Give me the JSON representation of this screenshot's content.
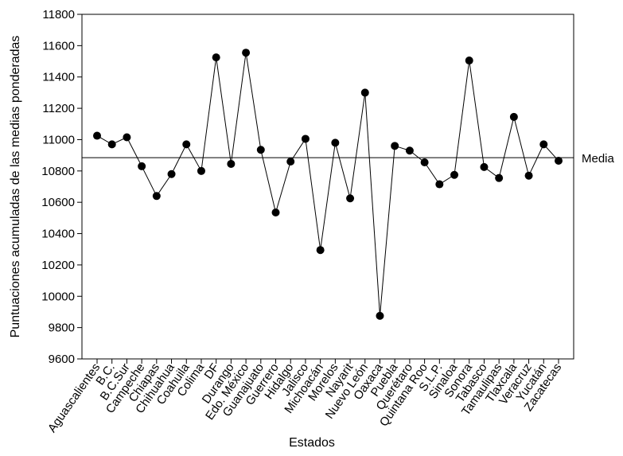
{
  "chart_data": {
    "type": "line",
    "title": "",
    "xlabel": "Estados",
    "ylabel": "Puntuaciones acumuladas de las medias ponderadas",
    "ylim": [
      9600,
      11800
    ],
    "yticks": [
      9600,
      9800,
      10000,
      10200,
      10400,
      10600,
      10800,
      11000,
      11200,
      11400,
      11600,
      11800
    ],
    "grid": false,
    "categories": [
      "Aguascalientes",
      "B.C.",
      "B.C.Sur",
      "Campeche",
      "Chiapas",
      "Chihuahua",
      "Coahuila",
      "Colima",
      "DF",
      "Durango",
      "Edo. México",
      "Guanajuato",
      "Guerrero",
      "Hidalgo",
      "Jalisco",
      "Michoacán",
      "Morelos",
      "Nayarit",
      "Nuevo León",
      "Oaxaca",
      "Puebla",
      "Querétaro",
      "Quintana Roo",
      "S.L.P.",
      "Sinaloa",
      "Sonora",
      "Tabasco",
      "Tamaulipas",
      "Tlaxcala",
      "Veracruz",
      "Yucatán",
      "Zacatecas"
    ],
    "series": [
      {
        "name": "Puntuaciones",
        "values": [
          11025,
          10970,
          11015,
          10830,
          10640,
          10780,
          10970,
          10800,
          11525,
          10845,
          11555,
          10935,
          10535,
          10860,
          11005,
          10295,
          10980,
          10625,
          11300,
          9875,
          10960,
          10930,
          10855,
          10715,
          10775,
          11505,
          10825,
          10755,
          11145,
          10770,
          10970,
          10865
        ]
      }
    ],
    "reference_line": {
      "label": "Media",
      "value": 10885
    }
  }
}
